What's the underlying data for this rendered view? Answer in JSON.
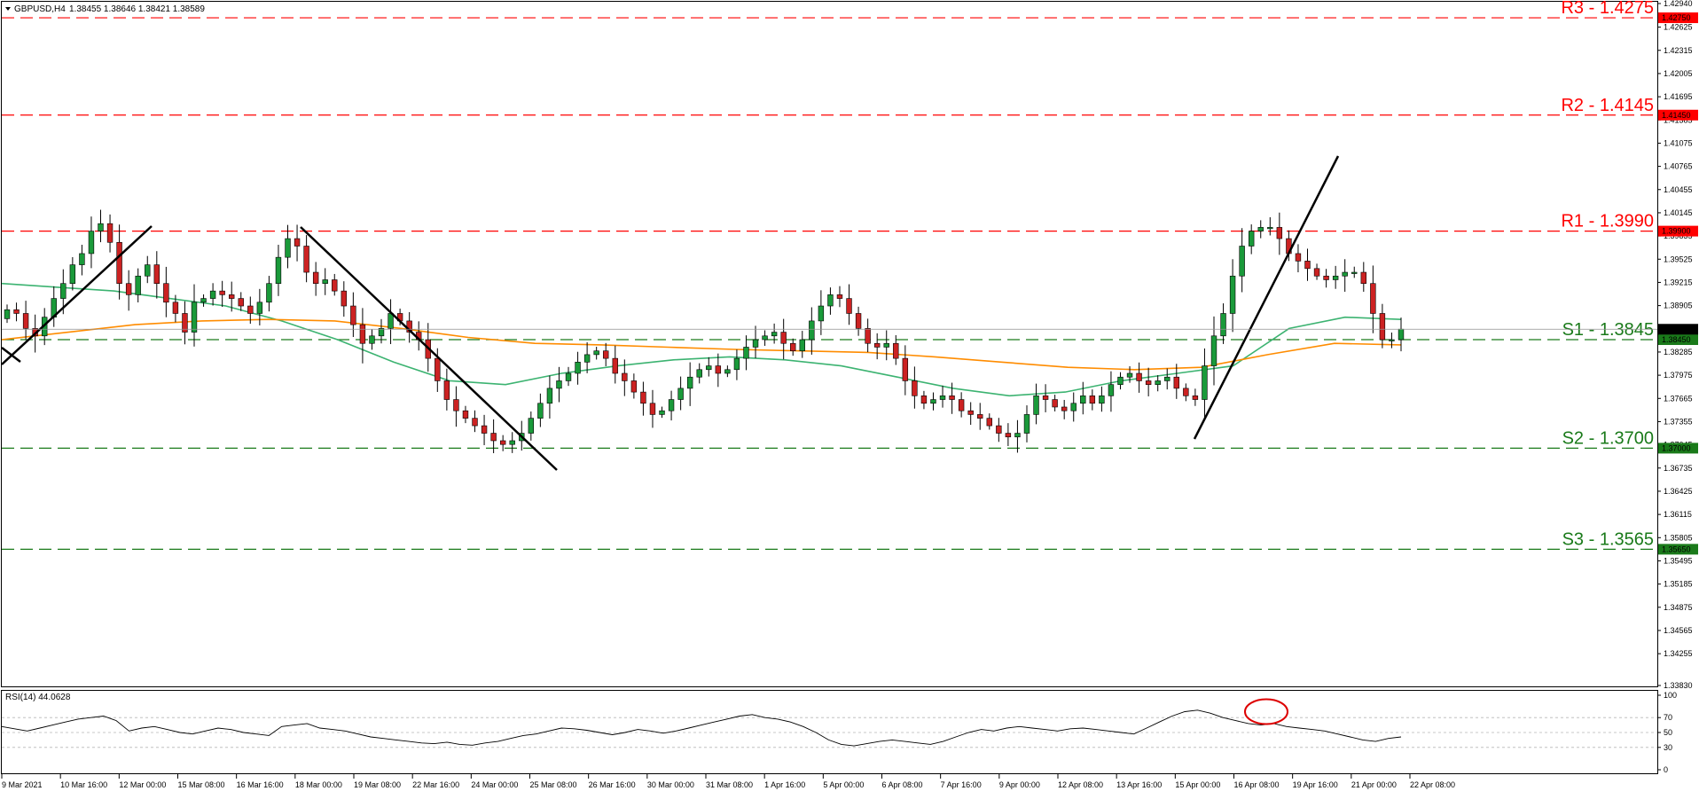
{
  "header": {
    "symbol": "GBPUSD,H4",
    "ohlc": "1.38455 1.38646 1.38421 1.38589"
  },
  "rsi_header": "RSI(14) 44.0628",
  "chart_data": [
    {
      "type": "candlestick",
      "symbol": "GBPUSD",
      "timeframe": "H4",
      "ylim": [
        1.3383,
        1.4294
      ],
      "yticks": [
        "1.42940",
        "1.42625",
        "1.42315",
        "1.42005",
        "1.41695",
        "1.41385",
        "1.41075",
        "1.40765",
        "1.40455",
        "1.40145",
        "1.39835",
        "1.39525",
        "1.39215",
        "1.38905",
        "1.38595",
        "1.38285",
        "1.37975",
        "1.37665",
        "1.37355",
        "1.37045",
        "1.36735",
        "1.36425",
        "1.36115",
        "1.35805",
        "1.35495",
        "1.35185",
        "1.34875",
        "1.34565",
        "1.34255",
        "1.33830"
      ],
      "x_labels": [
        "9 Mar 2021",
        "10 Mar 16:00",
        "12 Mar 00:00",
        "15 Mar 08:00",
        "16 Mar 16:00",
        "18 Mar 00:00",
        "19 Mar 08:00",
        "22 Mar 16:00",
        "24 Mar 00:00",
        "25 Mar 08:00",
        "26 Mar 16:00",
        "30 Mar 00:00",
        "31 Mar 08:00",
        "1 Apr 16:00",
        "5 Apr 00:00",
        "6 Apr 08:00",
        "7 Apr 16:00",
        "9 Apr 00:00",
        "12 Apr 08:00",
        "13 Apr 16:00",
        "15 Apr 00:00",
        "16 Apr 08:00",
        "19 Apr 16:00",
        "21 Apr 00:00",
        "22 Apr 08:00"
      ],
      "current_price": 1.38589,
      "current_price_label": "1.38589",
      "closes": [
        1.3885,
        1.388,
        1.386,
        1.385,
        1.3875,
        1.39,
        1.392,
        1.3945,
        1.396,
        1.399,
        1.4,
        1.3975,
        1.392,
        1.3905,
        1.393,
        1.3945,
        1.392,
        1.3895,
        1.388,
        1.3855,
        1.3895,
        1.39,
        1.391,
        1.3905,
        1.39,
        1.389,
        1.388,
        1.3895,
        1.392,
        1.3955,
        1.398,
        1.397,
        1.3935,
        1.392,
        1.3925,
        1.391,
        1.389,
        1.3865,
        1.384,
        1.385,
        1.386,
        1.388,
        1.387,
        1.3855,
        1.3845,
        1.382,
        1.379,
        1.3765,
        1.375,
        1.374,
        1.373,
        1.372,
        1.371,
        1.3705,
        1.371,
        1.372,
        1.374,
        1.376,
        1.378,
        1.379,
        1.38,
        1.3815,
        1.3825,
        1.383,
        1.382,
        1.38,
        1.379,
        1.3775,
        1.376,
        1.3745,
        1.375,
        1.3765,
        1.378,
        1.3795,
        1.3805,
        1.381,
        1.38,
        1.3805,
        1.382,
        1.3835,
        1.3845,
        1.385,
        1.3855,
        1.384,
        1.383,
        1.3845,
        1.387,
        1.389,
        1.3905,
        1.39,
        1.388,
        1.386,
        1.384,
        1.3835,
        1.384,
        1.382,
        1.379,
        1.377,
        1.376,
        1.3765,
        1.377,
        1.3765,
        1.375,
        1.3745,
        1.374,
        1.373,
        1.372,
        1.3715,
        1.372,
        1.3745,
        1.377,
        1.3765,
        1.3755,
        1.375,
        1.376,
        1.377,
        1.376,
        1.377,
        1.3785,
        1.3795,
        1.38,
        1.379,
        1.3785,
        1.379,
        1.3795,
        1.378,
        1.377,
        1.3765,
        1.381,
        1.385,
        1.388,
        1.393,
        1.397,
        1.399,
        1.3995,
        1.3995,
        1.398,
        1.396,
        1.395,
        1.394,
        1.393,
        1.3925,
        1.393,
        1.3935,
        1.3935,
        1.392,
        1.388,
        1.3845,
        1.3845,
        1.3859
      ],
      "moving_averages": [
        {
          "color": "#3cb371",
          "values": [
            1.392,
            1.3915,
            1.391,
            1.39,
            1.389,
            1.387,
            1.3845,
            1.3815,
            1.379,
            1.3785,
            1.38,
            1.381,
            1.3818,
            1.3822,
            1.3818,
            1.381,
            1.3795,
            1.378,
            1.377,
            1.3775,
            1.379,
            1.38,
            1.381,
            1.386,
            1.3875,
            1.3872
          ]
        },
        {
          "color": "#ff8c00",
          "values": [
            1.3845,
            1.3855,
            1.3865,
            1.387,
            1.3872,
            1.387,
            1.386,
            1.3848,
            1.384,
            1.3838,
            1.3835,
            1.3832,
            1.383,
            1.3828,
            1.3822,
            1.3815,
            1.3808,
            1.3805,
            1.3808,
            1.3825,
            1.384,
            1.3838
          ]
        }
      ],
      "horizontal_levels": [
        {
          "label": "R3 - 1.4275",
          "value": 1.4275,
          "tag": "1.42750",
          "color": "#ff0000"
        },
        {
          "label": "R2 - 1.4145",
          "value": 1.4145,
          "tag": "1.41450",
          "color": "#ff0000"
        },
        {
          "label": "R1 - 1.3990",
          "value": 1.399,
          "tag": "1.39900",
          "color": "#ff0000"
        },
        {
          "label": "S1 - 1.3845",
          "value": 1.3845,
          "tag": "1.38450",
          "color": "#1a7a1a"
        },
        {
          "label": "S2 - 1.3700",
          "value": 1.37,
          "tag": "1.37000",
          "color": "#1a7a1a"
        },
        {
          "label": "S3 - 1.3565",
          "value": 1.3565,
          "tag": "1.35650",
          "color": "#1a7a1a"
        }
      ],
      "trendlines_count": 4
    },
    {
      "type": "line",
      "indicator": "RSI(14)",
      "ylim": [
        0,
        100
      ],
      "yticks": [
        "100",
        "70",
        "50",
        "30",
        "0"
      ],
      "guides": [
        70,
        50,
        30
      ],
      "highlight": "overbought-circle",
      "values": [
        58,
        55,
        52,
        56,
        60,
        64,
        68,
        70,
        72,
        66,
        52,
        56,
        58,
        54,
        50,
        48,
        52,
        56,
        54,
        50,
        48,
        46,
        58,
        60,
        62,
        56,
        54,
        52,
        48,
        44,
        42,
        40,
        38,
        36,
        35,
        37,
        34,
        33,
        36,
        38,
        42,
        46,
        48,
        52,
        56,
        55,
        53,
        50,
        47,
        50,
        54,
        52,
        49,
        52,
        56,
        60,
        64,
        68,
        72,
        74,
        70,
        68,
        64,
        58,
        50,
        40,
        34,
        32,
        35,
        38,
        40,
        38,
        36,
        34,
        38,
        44,
        50,
        54,
        52,
        56,
        58,
        56,
        54,
        52,
        55,
        56,
        54,
        52,
        50,
        48,
        56,
        64,
        72,
        78,
        80,
        76,
        70,
        66,
        62,
        60,
        62,
        58,
        56,
        54,
        52,
        48,
        44,
        40,
        38,
        42,
        44
      ]
    }
  ]
}
